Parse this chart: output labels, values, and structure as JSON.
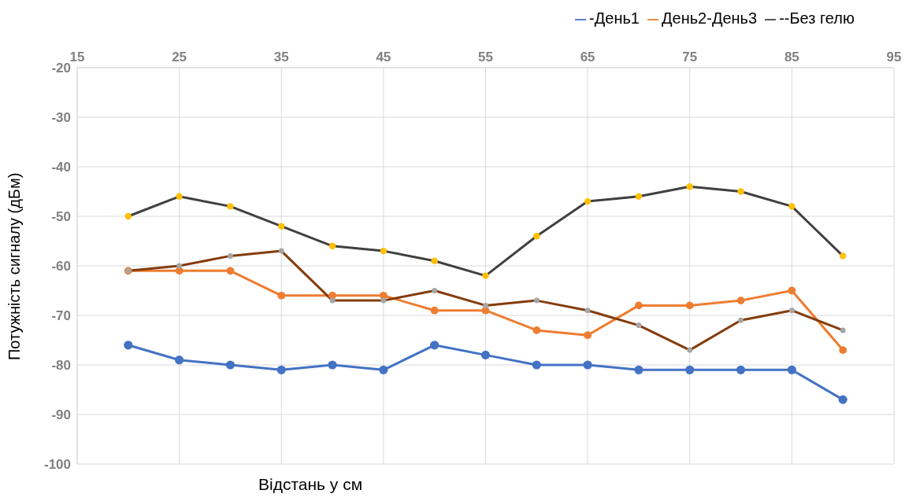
{
  "chart_data": {
    "type": "line",
    "xlabel": "Відстань у см",
    "ylabel": "Потужність сигналу (дБм)",
    "x": [
      20,
      25,
      30,
      35,
      40,
      45,
      50,
      55,
      60,
      65,
      70,
      75,
      80,
      85,
      90
    ],
    "series": [
      {
        "name": "-День1",
        "color": "#4472c4",
        "values": [
          -76,
          -79,
          -80,
          -81,
          -80,
          -81,
          -76,
          -78,
          -80,
          -80,
          -81,
          -81,
          -81,
          -81,
          -87
        ]
      },
      {
        "name": "День2-День3",
        "color": "#ed7d31",
        "values": [
          -61,
          -61,
          -61,
          -66,
          -66,
          -66,
          -69,
          -69,
          -73,
          -74,
          -68,
          -68,
          -67,
          -65,
          -77
        ]
      },
      {
        "name": "--Без гелю",
        "color": "#404040",
        "colors": [
          "#ffc000",
          "#ffc000",
          "#ffc000",
          "#ffc000",
          "#ffc000",
          "#ffc000",
          "#ffc000",
          "#ffc000",
          "#ffc000",
          "#ffc000",
          "#ffc000",
          "#ffc000",
          "#ffc000",
          "#ffc000",
          "#ffc000"
        ],
        "values": [
          -50,
          -46,
          -48,
          -52,
          -56,
          -57,
          -59,
          -62,
          -54,
          -47,
          -46,
          -44,
          -45,
          -48,
          -58
        ]
      },
      {
        "color": "#843c0c",
        "colors": [
          "#a5a5a5",
          "#a5a5a5",
          "#a5a5a5",
          "#a5a5a5",
          "#a5a5a5",
          "#a5a5a5",
          "#a5a5a5",
          "#a5a5a5",
          "#a5a5a5",
          "#a5a5a5",
          "#a5a5a5",
          "#a5a5a5",
          "#a5a5a5",
          "#a5a5a5",
          "#a5a5a5"
        ],
        "values": [
          -61,
          -60,
          -58,
          -57,
          -67,
          -67,
          -65,
          -68,
          -67,
          -69,
          -72,
          -77,
          -71,
          -69,
          -73
        ]
      }
    ],
    "xlim": [
      15,
      95
    ],
    "xticks": [
      15,
      25,
      35,
      45,
      55,
      65,
      75,
      85,
      95
    ],
    "ylim": [
      -100,
      -20
    ],
    "yticks": [
      -100,
      -90,
      -80,
      -70,
      -60,
      -50,
      -40,
      -30,
      -20
    ],
    "grid": true,
    "legend": "top right",
    "marker": "circle"
  }
}
